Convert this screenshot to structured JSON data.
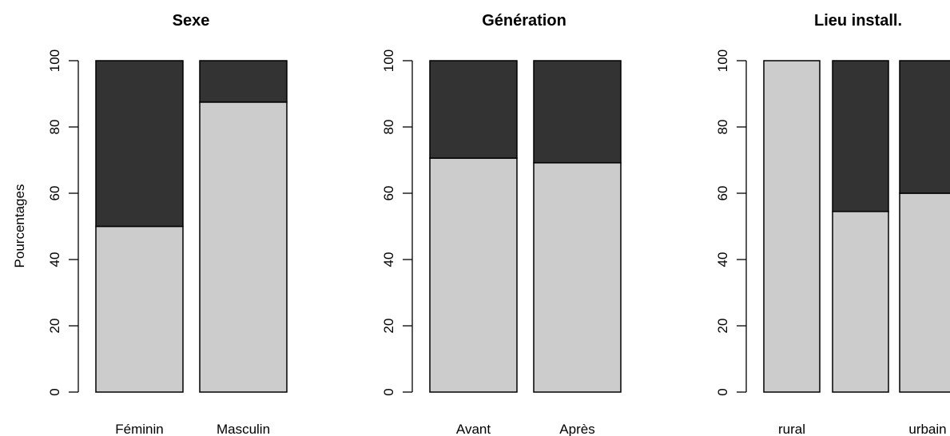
{
  "chart_data": [
    {
      "type": "bar",
      "stacked": true,
      "title": "Sexe",
      "ylabel": "Pourcentages",
      "categories": [
        "Féminin",
        "Masculin"
      ],
      "series": [
        {
          "values": [
            50,
            87.5
          ]
        },
        {
          "values": [
            50,
            12.5
          ]
        }
      ],
      "ylim": [
        0,
        100
      ],
      "yticks": [
        "0",
        "20",
        "40",
        "60",
        "80",
        "100"
      ],
      "grid": false
    },
    {
      "type": "bar",
      "stacked": true,
      "title": "Génération",
      "ylabel": "",
      "categories": [
        "Avant",
        "Après"
      ],
      "series": [
        {
          "values": [
            70.6,
            69.2
          ]
        },
        {
          "values": [
            29.4,
            30.8
          ]
        }
      ],
      "ylim": [
        0,
        100
      ],
      "yticks": [
        "0",
        "20",
        "40",
        "60",
        "80",
        "100"
      ],
      "grid": false
    },
    {
      "type": "bar",
      "stacked": true,
      "title": "Lieu install.",
      "ylabel": "",
      "categories": [
        "rural",
        "",
        "urbain"
      ],
      "series": [
        {
          "values": [
            100,
            54.5,
            60
          ]
        },
        {
          "values": [
            0,
            45.5,
            40
          ]
        }
      ],
      "ylim": [
        0,
        100
      ],
      "yticks": [
        "0",
        "20",
        "40",
        "60",
        "80",
        "100"
      ],
      "grid": false
    }
  ],
  "colors": {
    "lower": "#cccccc",
    "upper": "#333333",
    "axis": "#000000"
  }
}
